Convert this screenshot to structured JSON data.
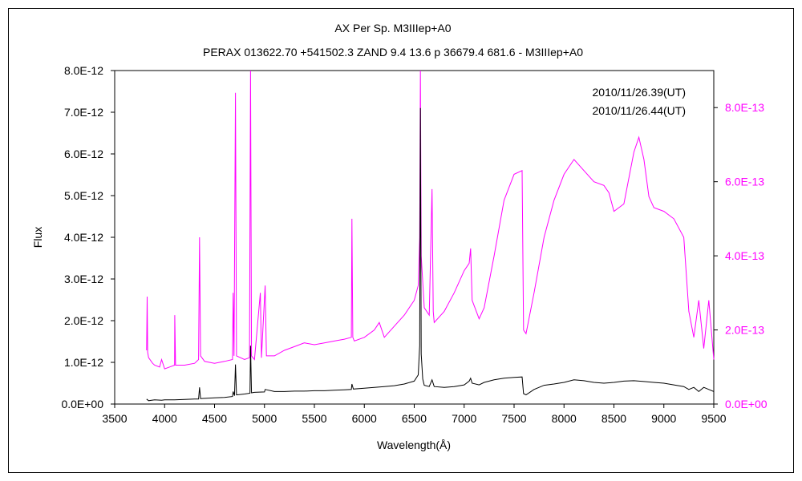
{
  "chart_data": {
    "type": "line",
    "title": "AX Per    Sp. M3IIIep+A0",
    "subtitle": "PERAX 013622.70 +541502.3 ZAND 9.4 13.6  p 36679.4 681.6 - M3IIIep+A0",
    "xlabel": "Wavelength(Å)",
    "ylabel": "Flux",
    "xlim": [
      3500,
      9500
    ],
    "ylim_left": [
      0,
      8e-12
    ],
    "ylim_right": [
      0,
      9e-13
    ],
    "x_ticks": [
      "3500",
      "4000",
      "4500",
      "5000",
      "5500",
      "6000",
      "6500",
      "7000",
      "7500",
      "8000",
      "8500",
      "9000",
      "9500"
    ],
    "y_ticks_left": [
      "0.0E+00",
      "1.0E-12",
      "2.0E-12",
      "3.0E-12",
      "4.0E-12",
      "5.0E-12",
      "6.0E-12",
      "7.0E-12",
      "8.0E-12"
    ],
    "y_ticks_right": [
      "0.0E+00",
      "2.0E-13",
      "4.0E-13",
      "6.0E-13",
      "8.0E-13"
    ],
    "grid": false,
    "legend_position": "top-right",
    "series": [
      {
        "name": "2010/11/26.39(UT)",
        "axis": "left",
        "color": "#000000",
        "points": [
          [
            3820,
            1.2e-13
          ],
          [
            3840,
            8e-14
          ],
          [
            3900,
            1e-13
          ],
          [
            3970,
            9e-14
          ],
          [
            4000,
            1e-13
          ],
          [
            4100,
            1e-13
          ],
          [
            4200,
            1.1e-13
          ],
          [
            4300,
            1.2e-13
          ],
          [
            4340,
            1.2e-13
          ],
          [
            4350,
            4e-13
          ],
          [
            4360,
            1.3e-13
          ],
          [
            4500,
            1.5e-13
          ],
          [
            4600,
            1.6e-13
          ],
          [
            4680,
            1.8e-13
          ],
          [
            4686,
            3e-13
          ],
          [
            4700,
            2e-13
          ],
          [
            4710,
            9.5e-13
          ],
          [
            4720,
            2.2e-13
          ],
          [
            4800,
            2.4e-13
          ],
          [
            4855,
            2.6e-13
          ],
          [
            4861,
            1.4e-12
          ],
          [
            4870,
            2.7e-13
          ],
          [
            4900,
            2.8e-13
          ],
          [
            5000,
            2.9e-13
          ],
          [
            5007,
            3.5e-13
          ],
          [
            5100,
            3e-13
          ],
          [
            5200,
            3e-13
          ],
          [
            5300,
            3.1e-13
          ],
          [
            5400,
            3.1e-13
          ],
          [
            5500,
            3.2e-13
          ],
          [
            5600,
            3.2e-13
          ],
          [
            5700,
            3.3e-13
          ],
          [
            5800,
            3.4e-13
          ],
          [
            5870,
            3.5e-13
          ],
          [
            5876,
            4.8e-13
          ],
          [
            5890,
            3.6e-13
          ],
          [
            6000,
            3.8e-13
          ],
          [
            6100,
            4e-13
          ],
          [
            6200,
            4.2e-13
          ],
          [
            6300,
            4.4e-13
          ],
          [
            6400,
            4.8e-13
          ],
          [
            6500,
            5.5e-13
          ],
          [
            6540,
            7e-13
          ],
          [
            6555,
            1.4e-12
          ],
          [
            6562,
            7.1e-12
          ],
          [
            6570,
            1.2e-12
          ],
          [
            6585,
            6e-13
          ],
          [
            6600,
            4.5e-13
          ],
          [
            6650,
            4.2e-13
          ],
          [
            6678,
            5.8e-13
          ],
          [
            6700,
            4.2e-13
          ],
          [
            6800,
            4e-13
          ],
          [
            6900,
            4.2e-13
          ],
          [
            7000,
            4.6e-13
          ],
          [
            7050,
            5.5e-13
          ],
          [
            7065,
            6.2e-13
          ],
          [
            7080,
            5e-13
          ],
          [
            7150,
            4.6e-13
          ],
          [
            7200,
            5.2e-13
          ],
          [
            7300,
            5.8e-13
          ],
          [
            7400,
            6.2e-13
          ],
          [
            7500,
            6.4e-13
          ],
          [
            7580,
            6.5e-13
          ],
          [
            7595,
            2.5e-13
          ],
          [
            7620,
            2.2e-13
          ],
          [
            7700,
            3.5e-13
          ],
          [
            7800,
            4.5e-13
          ],
          [
            7900,
            4.8e-13
          ],
          [
            8000,
            5.2e-13
          ],
          [
            8100,
            5.8e-13
          ],
          [
            8200,
            5.6e-13
          ],
          [
            8300,
            5.2e-13
          ],
          [
            8400,
            5e-13
          ],
          [
            8500,
            5.2e-13
          ],
          [
            8600,
            5.5e-13
          ],
          [
            8700,
            5.6e-13
          ],
          [
            8800,
            5.4e-13
          ],
          [
            8900,
            5.2e-13
          ],
          [
            9000,
            5e-13
          ],
          [
            9100,
            4.6e-13
          ],
          [
            9200,
            4.2e-13
          ],
          [
            9250,
            3.5e-13
          ],
          [
            9300,
            4e-13
          ],
          [
            9350,
            3e-13
          ],
          [
            9400,
            4e-13
          ],
          [
            9450,
            3.5e-13
          ],
          [
            9500,
            3e-13
          ]
        ]
      },
      {
        "name": "2010/11/26.44(UT)",
        "axis": "right",
        "color": "#ff00ff",
        "points": [
          [
            3820,
            1.45e-13
          ],
          [
            3825,
            2.9e-13
          ],
          [
            3830,
            1.4e-13
          ],
          [
            3840,
            1.25e-13
          ],
          [
            3880,
            1.1e-13
          ],
          [
            3900,
            1.05e-13
          ],
          [
            3950,
            1e-13
          ],
          [
            3970,
            1.2e-13
          ],
          [
            4000,
            9.5e-14
          ],
          [
            4050,
            1e-13
          ],
          [
            4100,
            1.05e-13
          ],
          [
            4102,
            2.4e-13
          ],
          [
            4110,
            1.05e-13
          ],
          [
            4200,
            1.05e-13
          ],
          [
            4300,
            1.1e-13
          ],
          [
            4340,
            1.2e-13
          ],
          [
            4350,
            4.5e-13
          ],
          [
            4360,
            1.3e-13
          ],
          [
            4400,
            1.15e-13
          ],
          [
            4500,
            1.1e-13
          ],
          [
            4600,
            1.15e-13
          ],
          [
            4680,
            1.2e-13
          ],
          [
            4686,
            3e-13
          ],
          [
            4695,
            1.3e-13
          ],
          [
            4710,
            8.4e-13
          ],
          [
            4720,
            1.3e-13
          ],
          [
            4800,
            1.2e-13
          ],
          [
            4850,
            1.25e-13
          ],
          [
            4861,
            9e-13
          ],
          [
            4870,
            1.3e-13
          ],
          [
            4900,
            1.2e-13
          ],
          [
            4959,
            3e-13
          ],
          [
            4970,
            1.25e-13
          ],
          [
            5007,
            3.2e-13
          ],
          [
            5020,
            1.3e-13
          ],
          [
            5100,
            1.3e-13
          ],
          [
            5200,
            1.45e-13
          ],
          [
            5300,
            1.55e-13
          ],
          [
            5400,
            1.65e-13
          ],
          [
            5500,
            1.6e-13
          ],
          [
            5600,
            1.65e-13
          ],
          [
            5700,
            1.7e-13
          ],
          [
            5800,
            1.75e-13
          ],
          [
            5870,
            1.8e-13
          ],
          [
            5876,
            5e-13
          ],
          [
            5885,
            1.8e-13
          ],
          [
            5900,
            1.7e-13
          ],
          [
            6000,
            1.8e-13
          ],
          [
            6100,
            2e-13
          ],
          [
            6150,
            2.2e-13
          ],
          [
            6200,
            1.8e-13
          ],
          [
            6300,
            2.1e-13
          ],
          [
            6400,
            2.4e-13
          ],
          [
            6500,
            2.8e-13
          ],
          [
            6540,
            3.2e-13
          ],
          [
            6555,
            4.5e-13
          ],
          [
            6562,
            9e-13
          ],
          [
            6570,
            4e-13
          ],
          [
            6585,
            3.3e-13
          ],
          [
            6600,
            2.6e-13
          ],
          [
            6650,
            2.4e-13
          ],
          [
            6678,
            5.8e-13
          ],
          [
            6690,
            2.5e-13
          ],
          [
            6700,
            2.2e-13
          ],
          [
            6800,
            2.5e-13
          ],
          [
            6900,
            3e-13
          ],
          [
            7000,
            3.6e-13
          ],
          [
            7050,
            3.8e-13
          ],
          [
            7065,
            4.2e-13
          ],
          [
            7080,
            2.8e-13
          ],
          [
            7150,
            2.3e-13
          ],
          [
            7200,
            2.6e-13
          ],
          [
            7300,
            4e-13
          ],
          [
            7400,
            5.5e-13
          ],
          [
            7500,
            6.2e-13
          ],
          [
            7580,
            6.3e-13
          ],
          [
            7595,
            2e-13
          ],
          [
            7620,
            1.9e-13
          ],
          [
            7700,
            3e-13
          ],
          [
            7800,
            4.5e-13
          ],
          [
            7900,
            5.5e-13
          ],
          [
            8000,
            6.2e-13
          ],
          [
            8100,
            6.6e-13
          ],
          [
            8200,
            6.3e-13
          ],
          [
            8300,
            6e-13
          ],
          [
            8400,
            5.9e-13
          ],
          [
            8450,
            5.7e-13
          ],
          [
            8500,
            5.2e-13
          ],
          [
            8600,
            5.4e-13
          ],
          [
            8700,
            6.8e-13
          ],
          [
            8750,
            7.2e-13
          ],
          [
            8800,
            6.6e-13
          ],
          [
            8850,
            5.6e-13
          ],
          [
            8900,
            5.3e-13
          ],
          [
            9000,
            5.2e-13
          ],
          [
            9100,
            5e-13
          ],
          [
            9200,
            4.5e-13
          ],
          [
            9250,
            2.5e-13
          ],
          [
            9300,
            1.8e-13
          ],
          [
            9350,
            2.8e-13
          ],
          [
            9400,
            1.5e-13
          ],
          [
            9450,
            2.8e-13
          ],
          [
            9500,
            1.2e-13
          ]
        ]
      }
    ]
  }
}
